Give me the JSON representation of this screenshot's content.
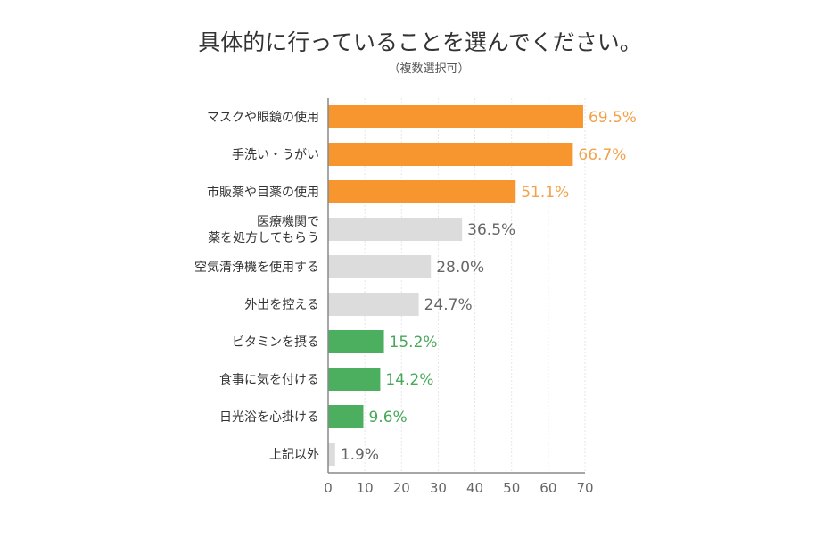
{
  "chart_data": {
    "type": "bar",
    "orientation": "horizontal",
    "title": "具体的に行っていることを選んでください。",
    "subtitle": "（複数選択可）",
    "categories": [
      [
        "マスクや眼鏡の使用"
      ],
      [
        "手洗い・うがい"
      ],
      [
        "市販薬や目薬の使用"
      ],
      [
        "医療機関で",
        "薬を処方してもらう"
      ],
      [
        "空気清浄機を使用する"
      ],
      [
        "外出を控える"
      ],
      [
        "ビタミンを摂る"
      ],
      [
        "食事に気を付ける"
      ],
      [
        "日光浴を心掛ける"
      ],
      [
        "上記以外"
      ]
    ],
    "values": [
      69.5,
      66.7,
      51.1,
      36.5,
      28.0,
      24.7,
      15.2,
      14.2,
      9.6,
      1.9
    ],
    "value_labels": [
      "69.5%",
      "66.7%",
      "51.1%",
      "36.5%",
      "28.0%",
      "24.7%",
      "15.2%",
      "14.2%",
      "9.6%",
      "1.9%"
    ],
    "groups": [
      "top",
      "top",
      "top",
      "mid",
      "mid",
      "mid",
      "health",
      "health",
      "health",
      "mid"
    ],
    "colors": {
      "top": {
        "bar": "#f7962f",
        "label": "#f2a24a"
      },
      "mid": {
        "bar": "#dcdcdc",
        "label": "#666666"
      },
      "health": {
        "bar": "#4caf5f",
        "label": "#48a85a"
      }
    },
    "xlim": [
      0,
      70
    ],
    "xticks": [
      "0",
      "10",
      "20",
      "30",
      "40",
      "50",
      "60",
      "70"
    ],
    "grid": true,
    "legend": "none"
  }
}
